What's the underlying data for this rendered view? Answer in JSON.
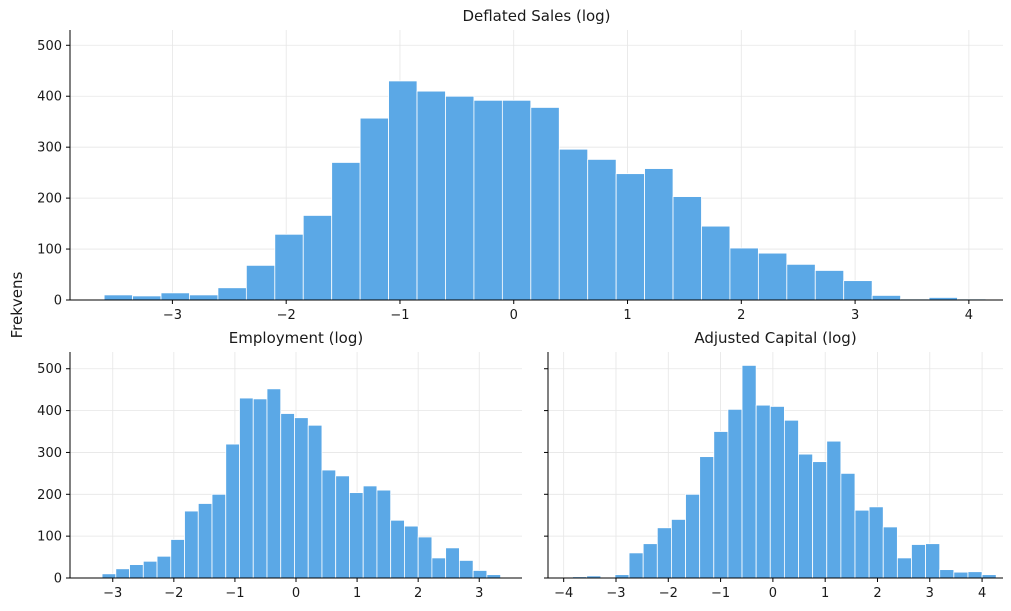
{
  "figure": {
    "ylabel": "Frekvens",
    "bar_color": "#5ba8e6"
  },
  "chart_data": [
    {
      "type": "bar",
      "title": "Deflated Sales (log)",
      "xlim": [
        -3.9,
        4.3
      ],
      "ylim": [
        0,
        530
      ],
      "xticks": [
        -3,
        -2,
        -1,
        0,
        1,
        2,
        3,
        4
      ],
      "xtick_labels": [
        "−3",
        "−2",
        "−1",
        "0",
        "1",
        "2",
        "3",
        "4"
      ],
      "yticks": [
        0,
        100,
        200,
        300,
        400,
        500
      ],
      "ytick_labels": [
        "0",
        "100",
        "200",
        "300",
        "400",
        "500"
      ],
      "grid": true,
      "bin_start": -3.6,
      "bin_width": 0.25,
      "values": [
        10,
        8,
        14,
        10,
        24,
        68,
        129,
        166,
        270,
        357,
        430,
        410,
        400,
        392,
        392,
        378,
        296,
        276,
        248,
        258,
        203,
        145,
        102,
        92,
        70,
        58,
        38,
        9,
        2,
        5,
        2
      ]
    },
    {
      "type": "bar",
      "title": "Employment (log)",
      "xlim": [
        -3.7,
        3.7
      ],
      "ylim": [
        0,
        540
      ],
      "xticks": [
        -3,
        -2,
        -1,
        0,
        1,
        2,
        3
      ],
      "xtick_labels": [
        "−3",
        "−2",
        "−1",
        "0",
        "1",
        "2",
        "3"
      ],
      "yticks": [
        0,
        100,
        200,
        300,
        400,
        500
      ],
      "ytick_labels": [
        "0",
        "100",
        "200",
        "300",
        "400",
        "500"
      ],
      "grid": true,
      "bin_start": -3.4,
      "bin_width": 0.225,
      "values": [
        2,
        10,
        22,
        32,
        40,
        52,
        92,
        160,
        178,
        200,
        320,
        430,
        428,
        452,
        393,
        383,
        365,
        258,
        244,
        204,
        220,
        210,
        138,
        124,
        98,
        48,
        72,
        42,
        18,
        8
      ]
    },
    {
      "type": "bar",
      "title": "Adjusted Capital (log)",
      "xlim": [
        -4.3,
        4.4
      ],
      "ylim": [
        0,
        540
      ],
      "xticks": [
        -4,
        -3,
        -2,
        -1,
        0,
        1,
        2,
        3,
        4
      ],
      "xtick_labels": [
        "−4",
        "−3",
        "−2",
        "−1",
        "0",
        "1",
        "2",
        "3",
        "4"
      ],
      "yticks": [
        0,
        100,
        200,
        300,
        400,
        500
      ],
      "ytick_labels": [],
      "grid": true,
      "bin_start": -4.1,
      "bin_width": 0.27,
      "values": [
        2,
        3,
        5,
        1,
        8,
        60,
        82,
        120,
        140,
        200,
        290,
        350,
        403,
        508,
        413,
        410,
        377,
        296,
        278,
        327,
        250,
        162,
        170,
        122,
        48,
        80,
        82,
        20,
        14,
        15,
        8
      ]
    }
  ]
}
